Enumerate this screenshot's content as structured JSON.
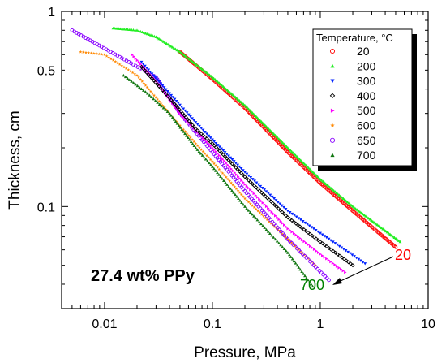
{
  "chart_data": {
    "type": "scatter",
    "title": "",
    "xlabel": "Pressure, MPa",
    "ylabel": "Thickness, cm",
    "xscale": "log",
    "yscale": "log",
    "xlim": [
      0.004,
      10
    ],
    "ylim": [
      0.03,
      1
    ],
    "x_ticks": [
      {
        "value": 0.01,
        "label": "0.01"
      },
      {
        "value": 0.1,
        "label": "0.1"
      },
      {
        "value": 1,
        "label": "1"
      },
      {
        "value": 10,
        "label": "10"
      }
    ],
    "y_ticks": [
      {
        "value": 0.1,
        "label": "0.1"
      },
      {
        "value": 0.5,
        "label": "0.5"
      },
      {
        "value": 1,
        "label": "1"
      }
    ],
    "grid": false,
    "legend": {
      "title": "Temperature, °C",
      "placement": "top-right"
    },
    "annotation": "27.4 wt% PPy",
    "end_labels": [
      {
        "text": "20",
        "color": "#ff0000"
      },
      {
        "text": "700",
        "color": "#008000"
      }
    ],
    "series": [
      {
        "name": "20",
        "color": "#ff0000",
        "marker": "circle",
        "points": [
          [
            0.05,
            0.62
          ],
          [
            0.1,
            0.45
          ],
          [
            0.2,
            0.32
          ],
          [
            0.5,
            0.19
          ],
          [
            1,
            0.132
          ],
          [
            2,
            0.095
          ],
          [
            5,
            0.062
          ]
        ]
      },
      {
        "name": "200",
        "color": "#22ee22",
        "marker": "triangle-up",
        "points": [
          [
            0.012,
            0.82
          ],
          [
            0.02,
            0.8
          ],
          [
            0.03,
            0.74
          ],
          [
            0.05,
            0.62
          ],
          [
            0.1,
            0.46
          ],
          [
            0.2,
            0.33
          ],
          [
            0.5,
            0.2
          ],
          [
            1,
            0.138
          ],
          [
            2,
            0.1
          ],
          [
            5.5,
            0.066
          ]
        ]
      },
      {
        "name": "300",
        "color": "#0022ff",
        "marker": "triangle-down",
        "points": [
          [
            0.022,
            0.55
          ],
          [
            0.04,
            0.38
          ],
          [
            0.07,
            0.27
          ],
          [
            0.1,
            0.22
          ],
          [
            0.2,
            0.15
          ],
          [
            0.5,
            0.095
          ],
          [
            1,
            0.073
          ],
          [
            2.6,
            0.051
          ]
        ]
      },
      {
        "name": "400",
        "color": "#000000",
        "marker": "diamond",
        "points": [
          [
            0.022,
            0.52
          ],
          [
            0.04,
            0.36
          ],
          [
            0.07,
            0.25
          ],
          [
            0.1,
            0.21
          ],
          [
            0.2,
            0.142
          ],
          [
            0.5,
            0.088
          ],
          [
            1,
            0.066
          ],
          [
            2,
            0.05
          ]
        ]
      },
      {
        "name": "500",
        "color": "#ff00ff",
        "marker": "triangle-right",
        "points": [
          [
            0.018,
            0.6
          ],
          [
            0.03,
            0.44
          ],
          [
            0.05,
            0.3
          ],
          [
            0.1,
            0.2
          ],
          [
            0.2,
            0.13
          ],
          [
            0.5,
            0.077
          ],
          [
            1,
            0.057
          ],
          [
            1.7,
            0.046
          ]
        ]
      },
      {
        "name": "600",
        "color": "#ff8800",
        "marker": "star",
        "points": [
          [
            0.006,
            0.62
          ],
          [
            0.01,
            0.6
          ],
          [
            0.02,
            0.47
          ],
          [
            0.04,
            0.3
          ],
          [
            0.07,
            0.21
          ],
          [
            0.1,
            0.17
          ],
          [
            0.2,
            0.11
          ],
          [
            0.5,
            0.068
          ],
          [
            0.9,
            0.05
          ]
        ]
      },
      {
        "name": "650",
        "color": "#8800ff",
        "marker": "circle",
        "points": [
          [
            0.005,
            0.8
          ],
          [
            0.03,
            0.46
          ],
          [
            0.05,
            0.3
          ],
          [
            0.1,
            0.19
          ],
          [
            0.2,
            0.12
          ],
          [
            0.5,
            0.068
          ],
          [
            1.2,
            0.042
          ]
        ]
      },
      {
        "name": "700",
        "color": "#117711",
        "marker": "triangle-up",
        "points": [
          [
            0.015,
            0.47
          ],
          [
            0.025,
            0.38
          ],
          [
            0.04,
            0.3
          ],
          [
            0.07,
            0.2
          ],
          [
            0.1,
            0.16
          ],
          [
            0.2,
            0.1
          ],
          [
            0.5,
            0.058
          ],
          [
            0.85,
            0.039
          ]
        ]
      }
    ]
  }
}
